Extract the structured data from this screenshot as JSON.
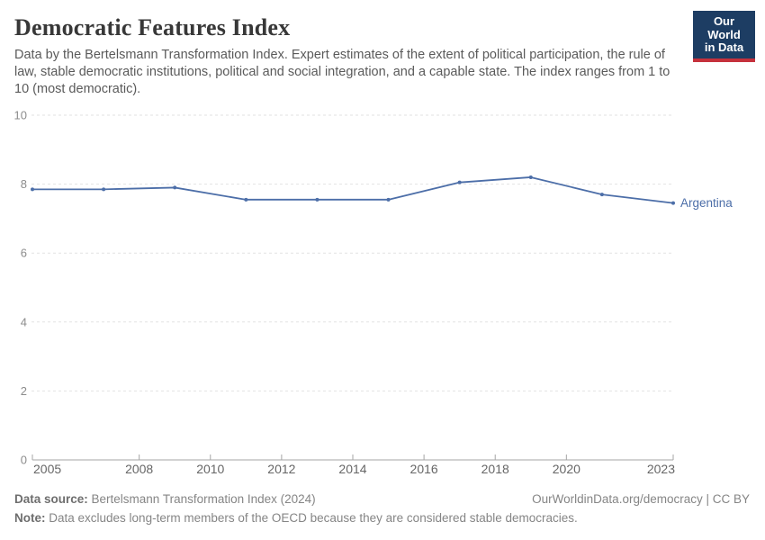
{
  "header": {
    "title": "Democratic Features Index",
    "subtitle": "Data by the Bertelsmann Transformation Index. Expert estimates of the extent of political participation, the rule of law, stable democratic institutions, political and social integration, and a capable state. The index ranges from 1 to 10 (most democratic).",
    "logo_line1": "Our World",
    "logo_line2": "in Data"
  },
  "chart_data": {
    "type": "line",
    "title": "Democratic Features Index",
    "x": [
      2005,
      2007,
      2009,
      2011,
      2013,
      2015,
      2017,
      2019,
      2021,
      2023
    ],
    "series": [
      {
        "name": "Argentina",
        "values": [
          7.85,
          7.85,
          7.9,
          7.55,
          7.55,
          7.55,
          8.05,
          8.2,
          7.7,
          7.45
        ],
        "color": "#4c6ea8"
      }
    ],
    "xlabel": "",
    "ylabel": "",
    "ylim": [
      0,
      10
    ],
    "yticks": [
      0,
      2,
      4,
      6,
      8,
      10
    ],
    "xticks": [
      2005,
      2008,
      2010,
      2012,
      2014,
      2016,
      2018,
      2020,
      2023
    ],
    "grid": "horizontal-dashed",
    "legend_position": "end-of-line-label"
  },
  "colors": {
    "line_blue": "#4c6ea8",
    "logo_navy": "#1d3d63",
    "logo_red": "#c5313c",
    "gridline": "#e2e2e2",
    "axis": "#a5a5a5",
    "y_tick_label": "#8c8c8c",
    "x_tick_label": "#666666",
    "title_text": "#383838",
    "subtitle_text": "#5a5a5a",
    "footer_text": "#858585"
  },
  "footer": {
    "data_source_label": "Data source:",
    "data_source_text": " Bertelsmann Transformation Index (2024)",
    "credit": "OurWorldinData.org/democracy | CC BY",
    "note_label": "Note:",
    "note_text": " Data excludes long-term members of the OECD because they are considered stable democracies."
  }
}
